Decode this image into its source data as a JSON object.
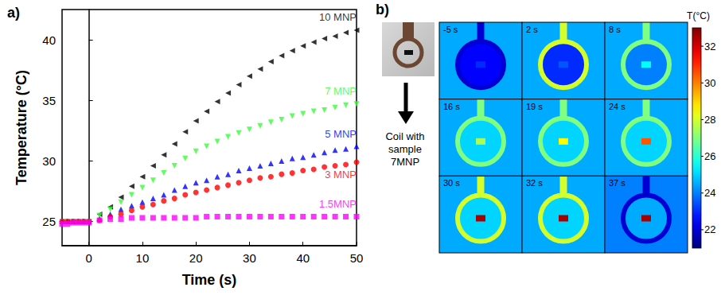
{
  "chart_data": {
    "type": "scatter",
    "label": "a)",
    "x_label": "Time (s)",
    "y_label": "Temperature (°C)",
    "x": [
      -5,
      -4,
      -3,
      -2,
      -1,
      0,
      2,
      4,
      6,
      8,
      10,
      12,
      14,
      16,
      18,
      20,
      22,
      24,
      26,
      28,
      30,
      32,
      34,
      36,
      38,
      40,
      42,
      44,
      46,
      48,
      50
    ],
    "series": [
      {
        "name": "10 MNP",
        "color": "#000000",
        "marker": "triangle-left",
        "values": [
          25,
          25,
          25,
          25,
          25,
          25,
          25.6,
          26.2,
          27.0,
          27.9,
          28.7,
          29.6,
          30.5,
          31.4,
          32.4,
          33.3,
          34.1,
          34.9,
          35.6,
          36.3,
          37.0,
          37.6,
          38.2,
          38.7,
          39.1,
          39.5,
          39.8,
          40.1,
          40.3,
          40.6,
          40.8
        ]
      },
      {
        "name": "7 MNP",
        "color": "#33ff33",
        "marker": "triangle-down",
        "values": [
          25,
          25,
          25,
          25,
          25,
          25,
          25.5,
          26.0,
          26.6,
          27.2,
          27.8,
          28.4,
          29.0,
          29.6,
          30.2,
          30.8,
          31.2,
          31.6,
          32.0,
          32.3,
          32.6,
          32.9,
          33.2,
          33.4,
          33.7,
          33.9,
          34.1,
          34.2,
          34.4,
          34.6,
          34.7
        ]
      },
      {
        "name": "5 MNP",
        "color": "#0000ff",
        "marker": "triangle-up",
        "values": [
          25,
          25,
          25,
          25,
          25,
          25,
          25.2,
          25.6,
          26.0,
          26.3,
          26.6,
          26.9,
          27.2,
          27.6,
          27.9,
          28.2,
          28.4,
          28.7,
          28.9,
          29.2,
          29.4,
          29.6,
          29.8,
          30.0,
          30.2,
          30.3,
          30.5,
          30.7,
          30.9,
          31.0,
          31.2
        ]
      },
      {
        "name": "3 MNP",
        "color": "#ff0000",
        "marker": "circle",
        "values": [
          25,
          25,
          25,
          25,
          25,
          25,
          25.1,
          25.4,
          25.6,
          25.9,
          26.2,
          26.4,
          26.7,
          26.9,
          27.2,
          27.4,
          27.6,
          27.8,
          28.0,
          28.2,
          28.4,
          28.6,
          28.7,
          28.9,
          29.0,
          29.2,
          29.3,
          29.5,
          29.6,
          29.7,
          29.9
        ]
      },
      {
        "name": "1.5MNP",
        "color": "#ff00ff",
        "marker": "square",
        "values": [
          24.8,
          24.8,
          24.9,
          24.9,
          24.9,
          24.9,
          25.1,
          25.2,
          25.2,
          25.3,
          25.3,
          25.3,
          25.3,
          25.3,
          25.3,
          25.3,
          25.4,
          25.4,
          25.4,
          25.4,
          25.4,
          25.4,
          25.4,
          25.4,
          25.4,
          25.4,
          25.4,
          25.4,
          25.4,
          25.4,
          25.4
        ]
      }
    ],
    "xlim": [
      -5,
      50
    ],
    "xticks": [
      0,
      10,
      20,
      30,
      40,
      50
    ],
    "ylim": [
      23,
      42.5
    ],
    "yticks": [
      25,
      30,
      35,
      40
    ],
    "grid": false
  },
  "panel_b": {
    "label": "b)",
    "caption": "Coil with sample 7MNP",
    "frames": [
      {
        "time": "-5 s",
        "background": 24.5,
        "coil": 22,
        "inside": 22.5,
        "sample": 23
      },
      {
        "time": "2 s",
        "background": 24.5,
        "coil": 28,
        "inside": 23,
        "sample": 23.5
      },
      {
        "time": "8 s",
        "background": 24.5,
        "coil": 27,
        "inside": 24,
        "sample": 25.5
      },
      {
        "time": "16 s",
        "background": 24.5,
        "coil": 27,
        "inside": 25,
        "sample": 27.5
      },
      {
        "time": "19 s",
        "background": 24.5,
        "coil": 27,
        "inside": 25,
        "sample": 28.5
      },
      {
        "time": "24 s",
        "background": 24.5,
        "coil": 27,
        "inside": 25,
        "sample": 30.5
      },
      {
        "time": "30 s",
        "background": 24.5,
        "coil": 28,
        "inside": 25,
        "sample": 32.5
      },
      {
        "time": "32 s",
        "background": 24.5,
        "coil": 28,
        "inside": 25,
        "sample": 32.5
      },
      {
        "time": "37 s",
        "background": 24,
        "coil": 22,
        "inside": 24.5,
        "sample": 32.5
      }
    ],
    "colorbar": {
      "title": "T(°C)",
      "range": [
        21,
        33
      ],
      "ticks": [
        22,
        24,
        26,
        28,
        30,
        32
      ]
    }
  }
}
